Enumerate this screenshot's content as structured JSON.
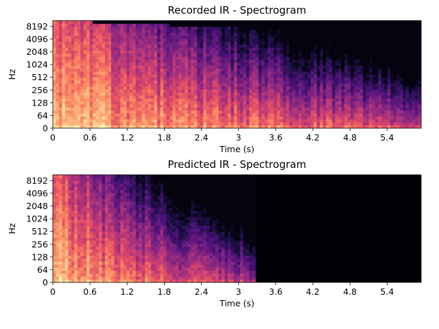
{
  "chart_data": [
    {
      "type": "heatmap",
      "title": "Recorded IR - Spectrogram",
      "xlabel": "Time (s)",
      "ylabel": "Hz",
      "x_ticks": [
        "0",
        "0.6",
        "1.2",
        "1.8",
        "2.4",
        "3",
        "3.6",
        "4.2",
        "4.8",
        "5.4"
      ],
      "x_tick_values": [
        0,
        0.6,
        1.2,
        1.8,
        2.4,
        3.0,
        3.6,
        4.2,
        4.8,
        5.4
      ],
      "y_ticks": [
        "0",
        "64",
        "128",
        "256",
        "512",
        "1024",
        "2048",
        "4096",
        "8192"
      ],
      "y_tick_values": [
        0,
        64,
        128,
        256,
        512,
        1024,
        2048,
        4096,
        8192
      ],
      "xlim": [
        0,
        5.95
      ],
      "ylim": [
        0,
        11025
      ],
      "y_scale": "symlog",
      "colormap": "magma",
      "signal_end_s": 5.95
    },
    {
      "type": "heatmap",
      "title": "Predicted IR - Spectrogram",
      "xlabel": "Time (s)",
      "ylabel": "Hz",
      "x_ticks": [
        "0",
        "0.6",
        "1.2",
        "1.8",
        "2.4",
        "3",
        "3.6",
        "4.2",
        "4.8",
        "5.4"
      ],
      "x_tick_values": [
        0,
        0.6,
        1.2,
        1.8,
        2.4,
        3.0,
        3.6,
        4.2,
        4.8,
        5.4
      ],
      "y_ticks": [
        "0",
        "64",
        "128",
        "256",
        "512",
        "1024",
        "2048",
        "4096",
        "8192"
      ],
      "y_tick_values": [
        0,
        64,
        128,
        256,
        512,
        1024,
        2048,
        4096,
        8192
      ],
      "xlim": [
        0,
        5.95
      ],
      "ylim": [
        0,
        11025
      ],
      "y_scale": "symlog",
      "colormap": "magma",
      "signal_end_s": 3.27
    }
  ]
}
